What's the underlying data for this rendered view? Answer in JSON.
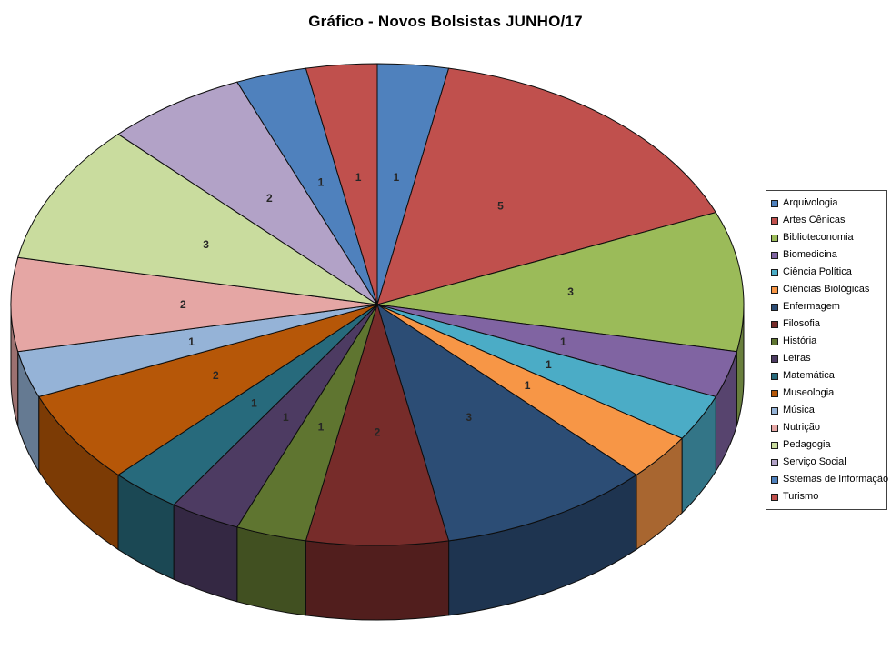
{
  "chart_data": {
    "type": "pie",
    "title": "Gráfico - Novos Bolsistas JUNHO/17",
    "style": "3d-pie",
    "total": 32,
    "start_angle_deg": 0,
    "direction": "clockwise",
    "data_labels": "values",
    "legend_position": "right",
    "background_color": "#ffffff",
    "series": [
      {
        "label": "Arquivologia",
        "value": 1,
        "color": "#4F81BD"
      },
      {
        "label": "Artes Cênicas",
        "value": 5,
        "color": "#C0504D"
      },
      {
        "label": "Biblioteconomia",
        "value": 3,
        "color": "#9BBB59"
      },
      {
        "label": "Biomedicina",
        "value": 1,
        "color": "#8064A2"
      },
      {
        "label": "Ciência Política",
        "value": 1,
        "color": "#4BACC6"
      },
      {
        "label": "Ciências Biológicas",
        "value": 1,
        "color": "#F79646"
      },
      {
        "label": "Enfermagem",
        "value": 3,
        "color": "#2C4D75"
      },
      {
        "label": "Filosofia",
        "value": 2,
        "color": "#772C2A"
      },
      {
        "label": "História",
        "value": 1,
        "color": "#5F7530"
      },
      {
        "label": "Letras",
        "value": 1,
        "color": "#4D3B62"
      },
      {
        "label": "Matemática",
        "value": 1,
        "color": "#276A7C"
      },
      {
        "label": "Museologia",
        "value": 2,
        "color": "#B65708"
      },
      {
        "label": "Música",
        "value": 1,
        "color": "#95B3D7"
      },
      {
        "label": "Nutrição",
        "value": 2,
        "color": "#E5A6A4"
      },
      {
        "label": "Pedagogia",
        "value": 3,
        "color": "#C9DC9E"
      },
      {
        "label": "Serviço Social",
        "value": 2,
        "color": "#B2A2C7"
      },
      {
        "label": "Sstemas de Informação",
        "value": 1,
        "color": "#4F81BD"
      },
      {
        "label": "Turismo",
        "value": 1,
        "color": "#C0504D"
      }
    ]
  }
}
